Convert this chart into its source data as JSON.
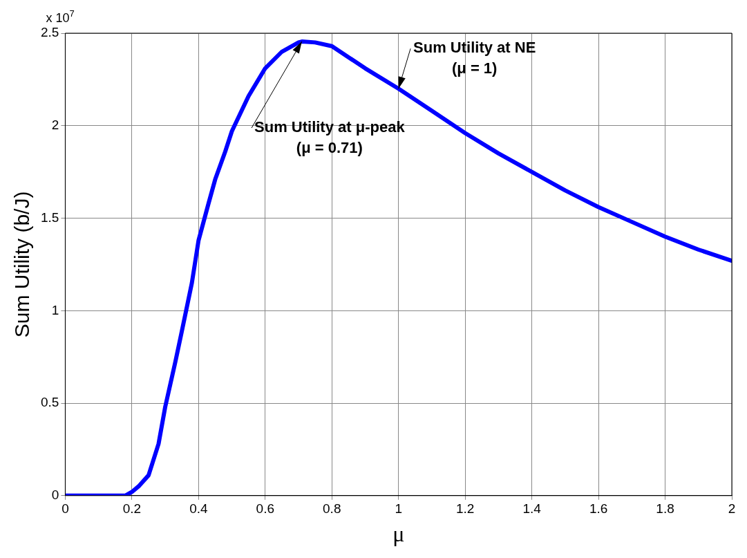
{
  "chart_data": {
    "type": "line",
    "xlabel": "μ",
    "ylabel": "Sum Utility (b/J)",
    "x": [
      0,
      0.05,
      0.1,
      0.15,
      0.18,
      0.2,
      0.22,
      0.25,
      0.28,
      0.3,
      0.33,
      0.35,
      0.38,
      0.4,
      0.43,
      0.45,
      0.48,
      0.5,
      0.55,
      0.6,
      0.65,
      0.7,
      0.71,
      0.75,
      0.8,
      0.9,
      1.0,
      1.1,
      1.2,
      1.3,
      1.4,
      1.5,
      1.6,
      1.7,
      1.8,
      1.9,
      2.0
    ],
    "series": [
      {
        "color": "#0000ff",
        "values": [
          0,
          0,
          0,
          0,
          0,
          0.02,
          0.05,
          0.11,
          0.28,
          0.48,
          0.72,
          0.89,
          1.15,
          1.38,
          1.58,
          1.71,
          1.86,
          1.97,
          2.16,
          2.31,
          2.4,
          2.45,
          2.455,
          2.45,
          2.43,
          2.31,
          2.2,
          2.08,
          1.96,
          1.85,
          1.75,
          1.65,
          1.56,
          1.48,
          1.4,
          1.33,
          1.27
        ]
      }
    ],
    "xlim": [
      0,
      2
    ],
    "xticks": [
      0,
      0.2,
      0.4,
      0.6,
      0.8,
      1,
      1.2,
      1.4,
      1.6,
      1.8,
      2
    ],
    "ylim": [
      0,
      2.5
    ],
    "yticks": [
      0,
      0.5,
      1,
      1.5,
      2,
      2.5
    ],
    "grid": true,
    "marker": "none",
    "line_style": "solid",
    "legend": false,
    "annotations": [
      "x 10$^{7}$",
      {
        "text": "Sum Utility at NE\n(μ = 1)",
        "x": 1,
        "y": 2.2
      },
      {
        "text": "Sum Utility at μ-peak\n(μ = 0.71)",
        "x": 0.71,
        "y": 2.455
      }
    ]
  }
}
